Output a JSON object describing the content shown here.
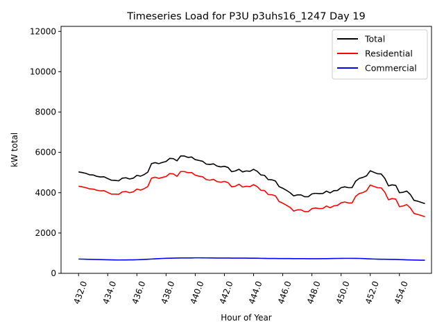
{
  "chart_data": {
    "type": "line",
    "title": "Timeseries Load for P3U p3uhs16_1247  Day 19",
    "xlabel": "Hour of Year",
    "ylabel": "kW total",
    "xlim": [
      430.8,
      456.2
    ],
    "ylim": [
      0,
      12250
    ],
    "xticks": [
      432,
      434,
      436,
      438,
      440,
      442,
      444,
      446,
      448,
      450,
      452,
      454
    ],
    "xtick_labels": [
      "432.0",
      "434.0",
      "436.0",
      "438.0",
      "440.0",
      "442.0",
      "444.0",
      "446.0",
      "448.0",
      "450.0",
      "452.0",
      "454.0"
    ],
    "yticks": [
      0,
      2000,
      4000,
      6000,
      8000,
      10000,
      12000
    ],
    "ytick_labels": [
      "0",
      "2000",
      "4000",
      "6000",
      "8000",
      "10000",
      "12000"
    ],
    "grid": false,
    "legend_position": "top-right",
    "x": [
      432.0,
      432.25,
      432.5,
      432.75,
      433.0,
      433.25,
      433.5,
      433.75,
      434.0,
      434.25,
      434.5,
      434.75,
      435.0,
      435.25,
      435.5,
      435.75,
      436.0,
      436.25,
      436.5,
      436.75,
      437.0,
      437.25,
      437.5,
      437.75,
      438.0,
      438.25,
      438.5,
      438.75,
      439.0,
      439.25,
      439.5,
      439.75,
      440.0,
      440.25,
      440.5,
      440.75,
      441.0,
      441.25,
      441.5,
      441.75,
      442.0,
      442.25,
      442.5,
      442.75,
      443.0,
      443.25,
      443.5,
      443.75,
      444.0,
      444.25,
      444.5,
      444.75,
      445.0,
      445.25,
      445.5,
      445.75,
      446.0,
      446.25,
      446.5,
      446.75,
      447.0,
      447.25,
      447.5,
      447.75,
      448.0,
      448.25,
      448.5,
      448.75,
      449.0,
      449.25,
      449.5,
      449.75,
      450.0,
      450.25,
      450.5,
      450.75,
      451.0,
      451.25,
      451.5,
      451.75,
      452.0,
      452.25,
      452.5,
      452.75,
      453.0,
      453.25,
      453.5,
      453.75,
      454.0,
      454.25,
      454.5,
      454.75,
      455.0,
      455.25,
      455.5,
      455.75
    ],
    "series": [
      {
        "name": "Total",
        "color": "#000000",
        "values": [
          5030,
          5000,
          4960,
          4890,
          4880,
          4810,
          4780,
          4790,
          4700,
          4620,
          4610,
          4590,
          4720,
          4740,
          4680,
          4720,
          4860,
          4820,
          4900,
          5020,
          5440,
          5490,
          5440,
          5500,
          5550,
          5700,
          5690,
          5580,
          5820,
          5820,
          5750,
          5770,
          5640,
          5600,
          5560,
          5420,
          5400,
          5430,
          5320,
          5280,
          5310,
          5250,
          5040,
          5080,
          5160,
          5030,
          5080,
          5060,
          5160,
          5060,
          4880,
          4860,
          4650,
          4640,
          4580,
          4300,
          4220,
          4120,
          4000,
          3840,
          3890,
          3890,
          3800,
          3800,
          3940,
          3970,
          3950,
          3960,
          4080,
          3990,
          4100,
          4110,
          4250,
          4290,
          4250,
          4250,
          4570,
          4710,
          4760,
          4840,
          5090,
          5010,
          4940,
          4930,
          4710,
          4340,
          4390,
          4360,
          4000,
          4020,
          4080,
          3910,
          3620,
          3580,
          3520,
          3460
        ]
      },
      {
        "name": "Residential",
        "color": "#ff0000",
        "values": [
          4320,
          4290,
          4250,
          4190,
          4180,
          4120,
          4090,
          4100,
          4010,
          3930,
          3930,
          3920,
          4040,
          4060,
          4000,
          4040,
          4180,
          4130,
          4200,
          4310,
          4720,
          4770,
          4710,
          4760,
          4800,
          4950,
          4930,
          4810,
          5050,
          5050,
          4990,
          5000,
          4870,
          4820,
          4790,
          4650,
          4620,
          4660,
          4550,
          4520,
          4560,
          4500,
          4290,
          4320,
          4420,
          4280,
          4320,
          4300,
          4400,
          4300,
          4120,
          4110,
          3910,
          3900,
          3840,
          3560,
          3480,
          3380,
          3270,
          3090,
          3150,
          3150,
          3060,
          3060,
          3210,
          3240,
          3210,
          3220,
          3340,
          3250,
          3350,
          3370,
          3500,
          3540,
          3490,
          3490,
          3820,
          3960,
          4010,
          4100,
          4380,
          4310,
          4250,
          4240,
          4020,
          3650,
          3710,
          3680,
          3310,
          3340,
          3410,
          3240,
          2970,
          2920,
          2870,
          2810
        ]
      },
      {
        "name": "Commercial",
        "color": "#0000ff",
        "values": [
          710,
          705,
          700,
          695,
          690,
          686,
          682,
          678,
          672,
          668,
          664,
          662,
          664,
          666,
          668,
          670,
          675,
          682,
          690,
          700,
          710,
          720,
          730,
          740,
          745,
          750,
          755,
          760,
          765,
          765,
          762,
          765,
          770,
          770,
          768,
          766,
          764,
          762,
          760,
          758,
          758,
          758,
          756,
          756,
          756,
          754,
          754,
          752,
          752,
          750,
          744,
          742,
          738,
          736,
          736,
          734,
          734,
          734,
          732,
          730,
          730,
          730,
          728,
          726,
          726,
          726,
          726,
          728,
          730,
          732,
          736,
          740,
          742,
          744,
          744,
          744,
          742,
          740,
          732,
          726,
          716,
          710,
          704,
          700,
          698,
          696,
          692,
          690,
          682,
          676,
          670,
          664,
          660,
          656,
          652,
          650
        ]
      }
    ]
  }
}
